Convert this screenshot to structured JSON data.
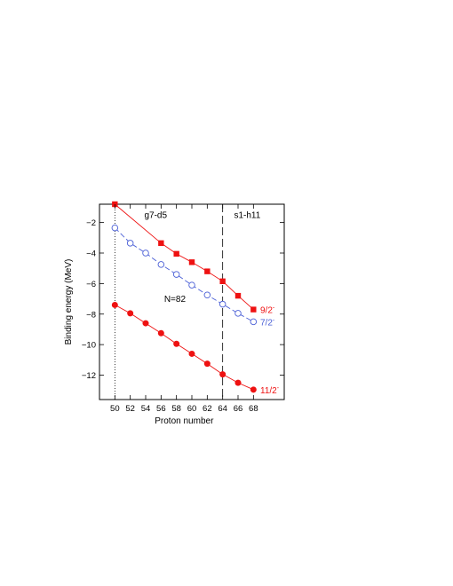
{
  "chart_data": {
    "type": "line",
    "xlabel": "Proton number",
    "ylabel": "Binding energy (MeV)",
    "xlim": [
      48,
      72
    ],
    "ylim": [
      -13.6,
      -0.8
    ],
    "xticks": [
      50,
      52,
      54,
      56,
      58,
      60,
      62,
      64,
      66,
      68
    ],
    "yticks": [
      -12,
      -10,
      -8,
      -6,
      -4,
      -2
    ],
    "vlines": [
      {
        "x": 50,
        "style": "dotted"
      },
      {
        "x": 64,
        "style": "dashed"
      }
    ],
    "annotations": [
      {
        "text": "g7-d5",
        "x": 55.3,
        "y": -1.5
      },
      {
        "text": "s1-h11",
        "x": 67.2,
        "y": -1.5
      },
      {
        "text": "N=82",
        "x": 57.8,
        "y": -7.0
      }
    ],
    "series": [
      {
        "name": "9/2",
        "superscript": "-",
        "color": "#ee1111",
        "marker": "square",
        "line": "solid",
        "x": [
          50,
          56,
          58,
          60,
          62,
          64,
          66,
          68
        ],
        "y": [
          -0.8,
          -3.35,
          -4.05,
          -4.6,
          -5.2,
          -5.85,
          -6.8,
          -7.7
        ]
      },
      {
        "name": "7/2",
        "superscript": "-",
        "color": "#4a5fd6",
        "marker": "open-circle",
        "line": "dashed",
        "x": [
          50,
          52,
          54,
          56,
          58,
          60,
          62,
          64,
          66,
          68
        ],
        "y": [
          -2.35,
          -3.35,
          -4.0,
          -4.75,
          -5.4,
          -6.1,
          -6.75,
          -7.35,
          -7.95,
          -8.5
        ]
      },
      {
        "name": "11/2",
        "superscript": "-",
        "color": "#ee1111",
        "marker": "filled-circle",
        "line": "solid",
        "x": [
          50,
          52,
          54,
          56,
          58,
          60,
          62,
          64,
          66,
          68
        ],
        "y": [
          -7.4,
          -7.95,
          -8.6,
          -9.25,
          -9.95,
          -10.6,
          -11.25,
          -11.95,
          -12.5,
          -12.95
        ]
      }
    ]
  }
}
